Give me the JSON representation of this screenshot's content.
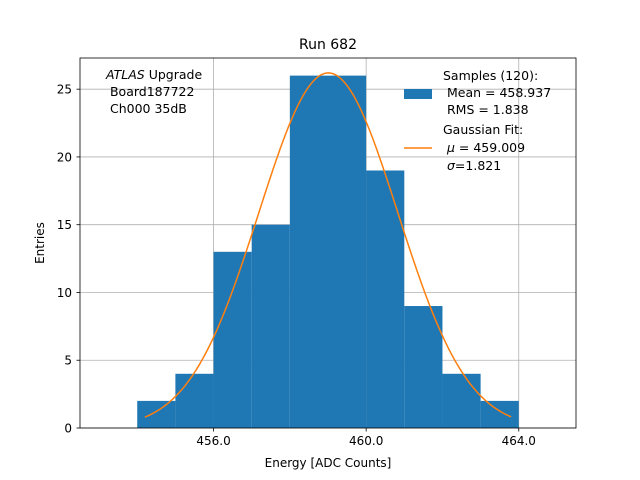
{
  "chart_data": {
    "type": "bar",
    "title": "Run 682",
    "xlabel": "Energy [ADC Counts]",
    "ylabel": "Entries",
    "xlim": [
      452.5,
      465.5
    ],
    "ylim": [
      0,
      27.3
    ],
    "grid": true,
    "x_ticks": [
      456.0,
      460.0,
      464.0
    ],
    "x_tick_labels": [
      "456.0",
      "460.0",
      "464.0"
    ],
    "y_ticks": [
      0,
      5,
      10,
      15,
      20,
      25
    ],
    "y_tick_labels": [
      "0",
      "5",
      "10",
      "15",
      "20",
      "25"
    ],
    "bin_width": 1,
    "bin_left_edges": [
      454,
      455,
      456,
      457,
      458,
      459,
      460,
      461,
      462,
      463
    ],
    "values": [
      2,
      4,
      13,
      15,
      26,
      26,
      19,
      9,
      4,
      2
    ],
    "fit": {
      "type": "gaussian",
      "mu": 459.009,
      "sigma": 1.821,
      "amplitude": 26.2,
      "x_range": [
        454.2,
        463.8
      ]
    },
    "annotation": {
      "line1_italic": "ATLAS",
      "line1_rest": " Upgrade",
      "line2": " Board187722",
      "line3": " Ch000 35dB"
    },
    "legend": {
      "placement": "top-right",
      "entries": [
        {
          "kind": "patch",
          "name": "Samples (120):",
          "line2": " Mean = 458.937",
          "line3": " RMS = 1.838",
          "color": "#1f77b4"
        },
        {
          "kind": "line",
          "name": "Gaussian Fit:",
          "line2_math": "μ",
          "line2_rest": " = 459.009",
          "line3_math": "σ",
          "line3_rest": "=1.821",
          "color": "#ff7f0e"
        }
      ]
    },
    "colors": {
      "bars": "#1f77b4",
      "fit": "#ff7f0e",
      "grid": "#b0b0b0",
      "axes": "#000000"
    }
  }
}
